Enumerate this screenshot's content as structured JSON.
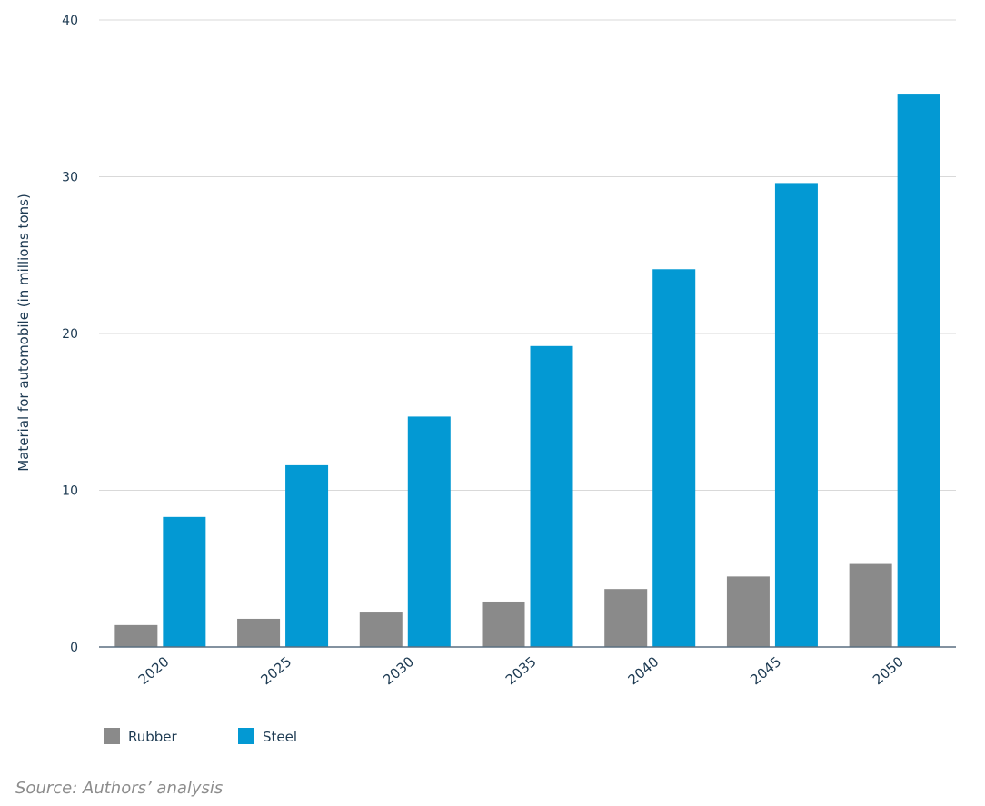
{
  "chart_data": {
    "type": "bar",
    "categories": [
      "2020",
      "2025",
      "2030",
      "2035",
      "2040",
      "2045",
      "2050"
    ],
    "series": [
      {
        "name": "Rubber",
        "values": [
          1.4,
          1.8,
          2.2,
          2.9,
          3.7,
          4.5,
          5.3
        ],
        "color": "#8a8a8a"
      },
      {
        "name": "Steel",
        "values": [
          8.3,
          11.6,
          14.7,
          19.2,
          24.1,
          29.6,
          35.3
        ],
        "color": "#0399d3"
      }
    ],
    "ylabel": "Material for automobile (in millions tons)",
    "yticks": [
      0,
      10,
      20,
      30,
      40
    ],
    "ylim": [
      0,
      40
    ],
    "grid": true,
    "legend_position": "bottom-left"
  },
  "source_note": "Source: Authors’ analysis"
}
